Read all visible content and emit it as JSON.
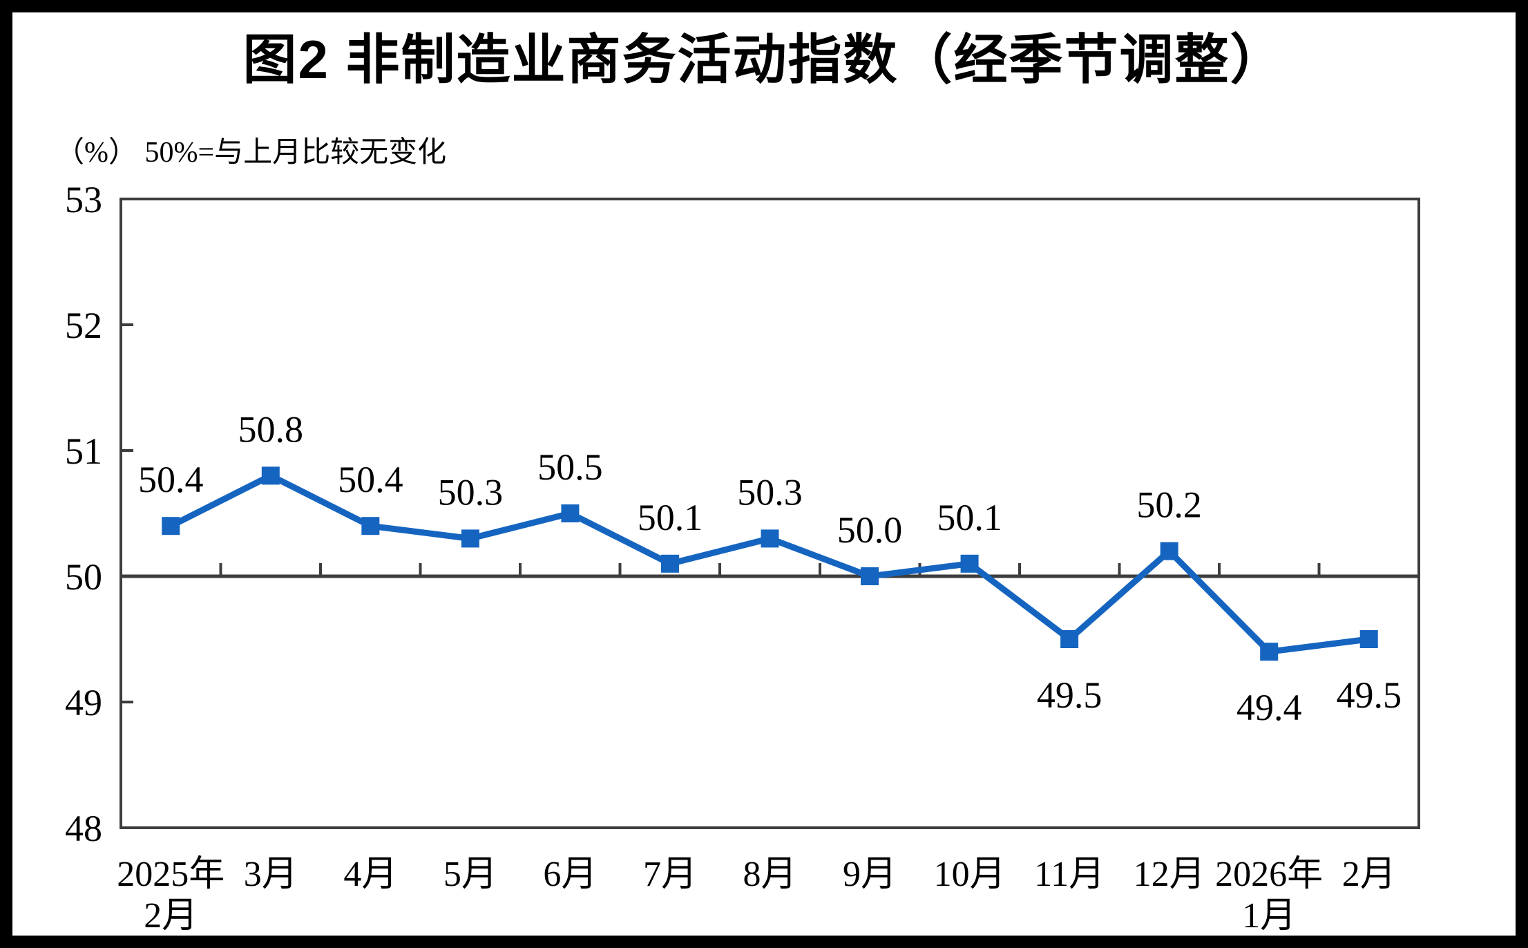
{
  "chart_data": {
    "type": "line",
    "title": "图2 非制造业商务活动指数（经季节调整）",
    "unit_note": "（%） 50%=与上月比较无变化",
    "categories": [
      "2025年\n2月",
      "3月",
      "4月",
      "5月",
      "6月",
      "7月",
      "8月",
      "9月",
      "10月",
      "11月",
      "12月",
      "2026年\n1月",
      "2月"
    ],
    "values": [
      50.4,
      50.8,
      50.4,
      50.3,
      50.5,
      50.1,
      50.3,
      50.0,
      50.1,
      49.5,
      50.2,
      49.4,
      49.5
    ],
    "data_labels": [
      "50.4",
      "50.8",
      "50.4",
      "50.3",
      "50.5",
      "50.1",
      "50.3",
      "50.0",
      "50.1",
      "49.5",
      "50.2",
      "49.4",
      "49.5"
    ],
    "label_below_indices": [
      9,
      11,
      12
    ],
    "ylim": [
      48,
      53
    ],
    "y_ticks": [
      "53",
      "52",
      "51",
      "50",
      "49",
      "48"
    ],
    "reference_line_value": 50,
    "series_color": "#1565C0",
    "axis_color": "#3d3d3d",
    "text_color": "#000000",
    "legend_position": "none",
    "grid": "off",
    "marker": "square"
  }
}
